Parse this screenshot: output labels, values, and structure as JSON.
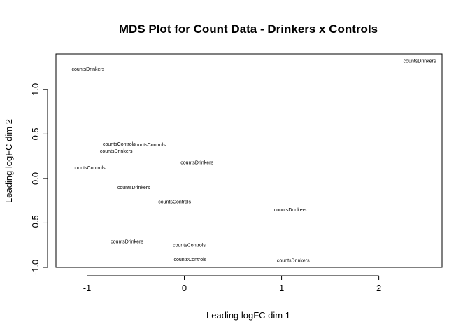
{
  "chart_data": {
    "type": "scatter",
    "title": "MDS Plot for Count Data - Drinkers x Controls",
    "xlabel": "Leading logFC dim 1",
    "ylabel": "Leading logFC dim 2",
    "xlim": [
      -1.32,
      2.65
    ],
    "ylim": [
      -1.0,
      1.4
    ],
    "x_ticks": [
      -1,
      0,
      1,
      2
    ],
    "x_tick_labels": [
      "-1",
      "0",
      "1",
      "2"
    ],
    "y_ticks": [
      -1.0,
      -0.5,
      0.0,
      0.5,
      1.0
    ],
    "y_tick_labels": [
      "-1.0",
      "-0.5",
      "0.0",
      "0.5",
      "1.0"
    ],
    "grid": false,
    "points": [
      {
        "label": "countsDrinkers",
        "x": -0.99,
        "y": 1.23
      },
      {
        "label": "countsDrinkers",
        "x": 2.42,
        "y": 1.32
      },
      {
        "label": "countsControls",
        "x": -0.67,
        "y": 0.39
      },
      {
        "label": "countsControls",
        "x": -0.36,
        "y": 0.38
      },
      {
        "label": "countsDrinkers",
        "x": -0.7,
        "y": 0.31
      },
      {
        "label": "countsControls",
        "x": -0.98,
        "y": 0.12
      },
      {
        "label": "countsDrinkers",
        "x": 0.13,
        "y": 0.18
      },
      {
        "label": "countsDrinkers",
        "x": -0.52,
        "y": -0.1
      },
      {
        "label": "countsControls",
        "x": -0.1,
        "y": -0.26
      },
      {
        "label": "countsDrinkers",
        "x": 1.09,
        "y": -0.35
      },
      {
        "label": "countsDrinkers",
        "x": -0.59,
        "y": -0.71
      },
      {
        "label": "countsControls",
        "x": 0.05,
        "y": -0.75
      },
      {
        "label": "countsControls",
        "x": 0.06,
        "y": -0.91
      },
      {
        "label": "countsDrinkers",
        "x": 1.12,
        "y": -0.92
      }
    ]
  }
}
